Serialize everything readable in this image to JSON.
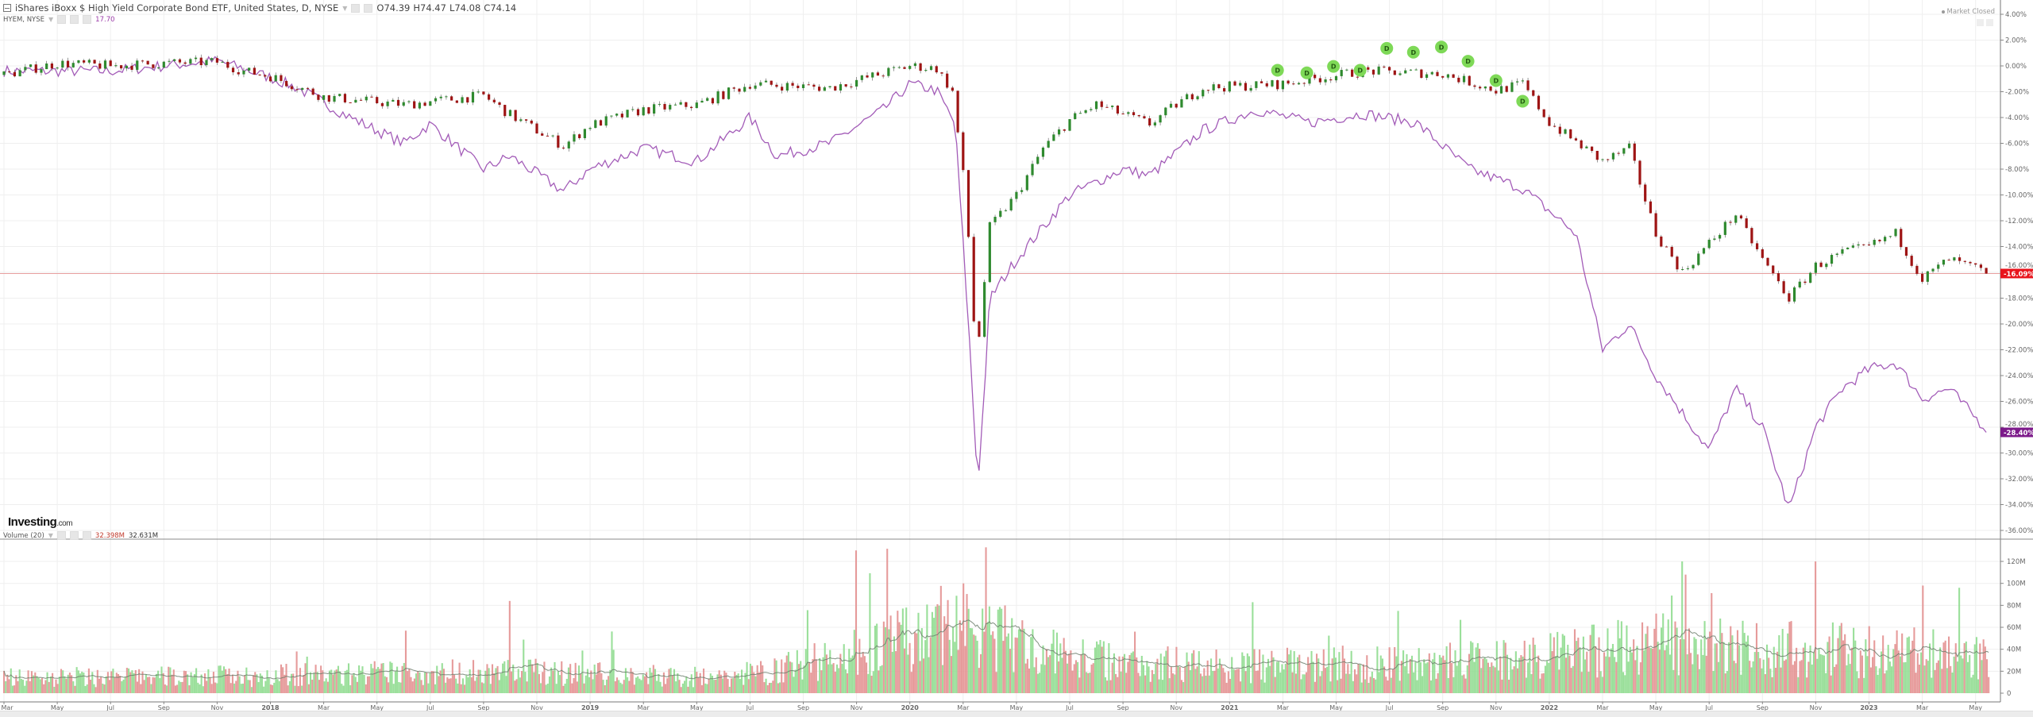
{
  "header": {
    "toggle_icon": "collapse-square-icon",
    "title": "iShares iBoxx $ High Yield Corporate Bond ETF, United States, D, NYSE",
    "open": "O74.39",
    "high": "H74.47",
    "low": "L74.08",
    "close": "C74.14"
  },
  "compare": {
    "label": "HYEM, NYSE",
    "value": "17.70"
  },
  "volume_legend": {
    "label": "Volume (20)",
    "value1": "32.398M",
    "value2": "32.631M"
  },
  "status": {
    "market": "Market Closed"
  },
  "logo": {
    "brand": "Investing",
    "suffix": ".com"
  },
  "colors": {
    "up": "#2f8a2f",
    "down": "#9e1414",
    "compare_line": "#a35cb8",
    "last_price_label": "#e8141c",
    "compare_label": "#7c1a8a",
    "vol_up": "#8fdc8f",
    "vol_down": "#e39090",
    "dividend": "#7ed957"
  },
  "chart_data": [
    {
      "type": "line",
      "title": "iShares iBoxx $ High Yield Corporate Bond ETF (HYG) vs HYEM, % change",
      "ylabel": "% change",
      "ylim": [
        -37,
        5
      ],
      "yticks": [
        "4.00%",
        "2.00%",
        "0.00%",
        "-2.00%",
        "-4.00%",
        "-6.00%",
        "-8.00%",
        "-10.00%",
        "-12.00%",
        "-14.00%",
        "-16.00%",
        "-18.00%",
        "-20.00%",
        "-22.00%",
        "-24.00%",
        "-26.00%",
        "-28.00%",
        "-30.00%",
        "-32.00%",
        "-34.00%",
        "-36.00%"
      ],
      "ytick_values": [
        4,
        2,
        0,
        -2,
        -4,
        -6,
        -8,
        -10,
        -12,
        -14,
        -16,
        -18,
        -20,
        -22,
        -24,
        -26,
        -28,
        -30,
        -32,
        -34,
        -36
      ],
      "xticks": [
        "Mar",
        "May",
        "Jul",
        "Sep",
        "Nov",
        "2018",
        "Mar",
        "May",
        "Jul",
        "Sep",
        "Nov",
        "2019",
        "Mar",
        "May",
        "Jul",
        "Sep",
        "Nov",
        "2020",
        "Mar",
        "May",
        "Jul",
        "Sep",
        "Nov",
        "2021",
        "Mar",
        "May",
        "Jul",
        "Sep",
        "Nov",
        "2022",
        "Mar",
        "May",
        "Jul",
        "Sep",
        "Nov",
        "2023",
        "Mar",
        "May"
      ],
      "x_start": "2017-03",
      "last_labels": {
        "hyg": "-16.09%",
        "hyem": "-28.40%"
      },
      "last_values": {
        "hyg": -16.09,
        "hyem": -28.4
      },
      "series": [
        {
          "name": "HYG (candles)",
          "points": [
            [
              "2017-03",
              -0.7
            ],
            [
              "2017-05",
              0.2
            ],
            [
              "2017-07",
              0.0
            ],
            [
              "2017-09",
              0.2
            ],
            [
              "2017-11",
              0.3
            ],
            [
              "2017-12",
              -0.4
            ],
            [
              "2018-01",
              -0.8
            ],
            [
              "2018-03",
              -2.4
            ],
            [
              "2018-06",
              -3.0
            ],
            [
              "2018-09",
              -2.3
            ],
            [
              "2018-10",
              -3.8
            ],
            [
              "2018-12",
              -6.2
            ],
            [
              "2019-01",
              -4.6
            ],
            [
              "2019-03",
              -3.4
            ],
            [
              "2019-05",
              -3.0
            ],
            [
              "2019-07",
              -1.4
            ],
            [
              "2019-10",
              -1.7
            ],
            [
              "2020-01",
              0.0
            ],
            [
              "2020-02",
              -0.2
            ],
            [
              "2020-02.6",
              -2.0
            ],
            [
              "2020-03.1",
              -10.0
            ],
            [
              "2020-03.5",
              -23.0
            ],
            [
              "2020-04",
              -12.5
            ],
            [
              "2020-05",
              -10.0
            ],
            [
              "2020-06",
              -6.4
            ],
            [
              "2020-07",
              -4.2
            ],
            [
              "2020-08",
              -3.0
            ],
            [
              "2020-10",
              -4.5
            ],
            [
              "2020-11",
              -3.0
            ],
            [
              "2020-12",
              -1.7
            ],
            [
              "2021-03",
              -1.4
            ],
            [
              "2021-06",
              -0.4
            ],
            [
              "2021-09",
              -0.6
            ],
            [
              "2021-11",
              -1.9
            ],
            [
              "2021-12",
              -1.4
            ],
            [
              "2022-01",
              -4.4
            ],
            [
              "2022-03",
              -7.4
            ],
            [
              "2022-04",
              -6.4
            ],
            [
              "2022-05",
              -13.0
            ],
            [
              "2022-06",
              -16.0
            ],
            [
              "2022-08",
              -11.5
            ],
            [
              "2022-09",
              -15.0
            ],
            [
              "2022-10",
              -18.0
            ],
            [
              "2022-11",
              -15.5
            ],
            [
              "2022-12",
              -14.5
            ],
            [
              "2023-01",
              -14.0
            ],
            [
              "2023-02",
              -13.0
            ],
            [
              "2023-03",
              -16.5
            ],
            [
              "2023-04",
              -15.0
            ],
            [
              "2023-05.5",
              -16.09
            ]
          ]
        },
        {
          "name": "HYEM, NYSE",
          "points": [
            [
              "2017-03",
              -0.4
            ],
            [
              "2017-07",
              -0.4
            ],
            [
              "2017-11",
              0.4
            ],
            [
              "2018-01",
              -0.9
            ],
            [
              "2018-02",
              -1.7
            ],
            [
              "2018-04",
              -4.0
            ],
            [
              "2018-06",
              -6.0
            ],
            [
              "2018-07",
              -4.5
            ],
            [
              "2018-09",
              -8.0
            ],
            [
              "2018-10",
              -7.0
            ],
            [
              "2018-12",
              -9.7
            ],
            [
              "2019-01",
              -8.0
            ],
            [
              "2019-03",
              -6.4
            ],
            [
              "2019-05",
              -7.4
            ],
            [
              "2019-07",
              -4.0
            ],
            [
              "2019-08",
              -7.0
            ],
            [
              "2019-10",
              -6.0
            ],
            [
              "2019-12",
              -3.4
            ],
            [
              "2020-01",
              -1.4
            ],
            [
              "2020-02",
              -1.9
            ],
            [
              "2020-02.7",
              -4.5
            ],
            [
              "2020-03.2",
              -20.0
            ],
            [
              "2020-03.55",
              -32.6
            ],
            [
              "2020-03.8",
              -25.0
            ],
            [
              "2020-04",
              -18.0
            ],
            [
              "2020-05",
              -15.0
            ],
            [
              "2020-07",
              -10.0
            ],
            [
              "2020-09",
              -8.0
            ],
            [
              "2020-10",
              -8.5
            ],
            [
              "2020-12",
              -5.0
            ],
            [
              "2021-02",
              -3.4
            ],
            [
              "2021-04",
              -4.4
            ],
            [
              "2021-06",
              -3.7
            ],
            [
              "2021-08",
              -4.4
            ],
            [
              "2021-10",
              -8.0
            ],
            [
              "2021-12",
              -9.5
            ],
            [
              "2022-02",
              -13.0
            ],
            [
              "2022-03",
              -22.0
            ],
            [
              "2022-04",
              -20.0
            ],
            [
              "2022-05",
              -24.0
            ],
            [
              "2022-07",
              -29.8
            ],
            [
              "2022-08",
              -25.0
            ],
            [
              "2022-09",
              -28.0
            ],
            [
              "2022-10",
              -34.4
            ],
            [
              "2022-11",
              -28.0
            ],
            [
              "2022-12",
              -25.0
            ],
            [
              "2023-01",
              -23.5
            ],
            [
              "2023-02",
              -23.0
            ],
            [
              "2023-03",
              -25.8
            ],
            [
              "2023-04",
              -25.0
            ],
            [
              "2023-05.5",
              -28.4
            ]
          ]
        }
      ],
      "dividends": {
        "label": "D",
        "dates": [
          "2021-02.8",
          "2021-03.9",
          "2021-04.9",
          "2021-05.9",
          "2021-06.9",
          "2021-07.9",
          "2021-08.95",
          "2021-09.95",
          "2021-11",
          "2021-12"
        ],
        "pct_anchor": [
          -1.2,
          -1.4,
          -0.9,
          -1.2,
          0.5,
          0.2,
          0.6,
          -0.5,
          -2.0,
          -3.6
        ]
      }
    },
    {
      "type": "bar",
      "title": "Volume (20)",
      "ylim": [
        0,
        135
      ],
      "unit": "M",
      "yticks": [
        "120M",
        "100M",
        "80M",
        "60M",
        "40M",
        "20M",
        "0"
      ],
      "ytick_values": [
        120,
        100,
        80,
        60,
        40,
        20,
        0
      ],
      "ma_period": 20,
      "typical_level": [
        [
          "2017-03",
          14
        ],
        [
          "2018-01",
          16
        ],
        [
          "2018-10",
          20
        ],
        [
          "2019-06",
          14
        ],
        [
          "2019-09",
          26
        ],
        [
          "2020-03",
          60
        ],
        [
          "2020-06",
          38
        ],
        [
          "2020-09",
          28
        ],
        [
          "2021-03",
          25
        ],
        [
          "2021-12",
          30
        ],
        [
          "2022-05",
          45
        ],
        [
          "2022-10",
          40
        ],
        [
          "2023-02",
          38
        ],
        [
          "2023-05.5",
          32
        ]
      ],
      "spikes": [
        [
          "2018-02",
          38
        ],
        [
          "2018-10",
          42
        ],
        [
          "2019-11",
          65
        ],
        [
          "2020-03",
          100
        ],
        [
          "2022-06",
          120
        ],
        [
          "2022-11",
          120
        ],
        [
          "2023-03",
          98
        ],
        [
          "2023-04.4",
          96
        ]
      ]
    }
  ]
}
